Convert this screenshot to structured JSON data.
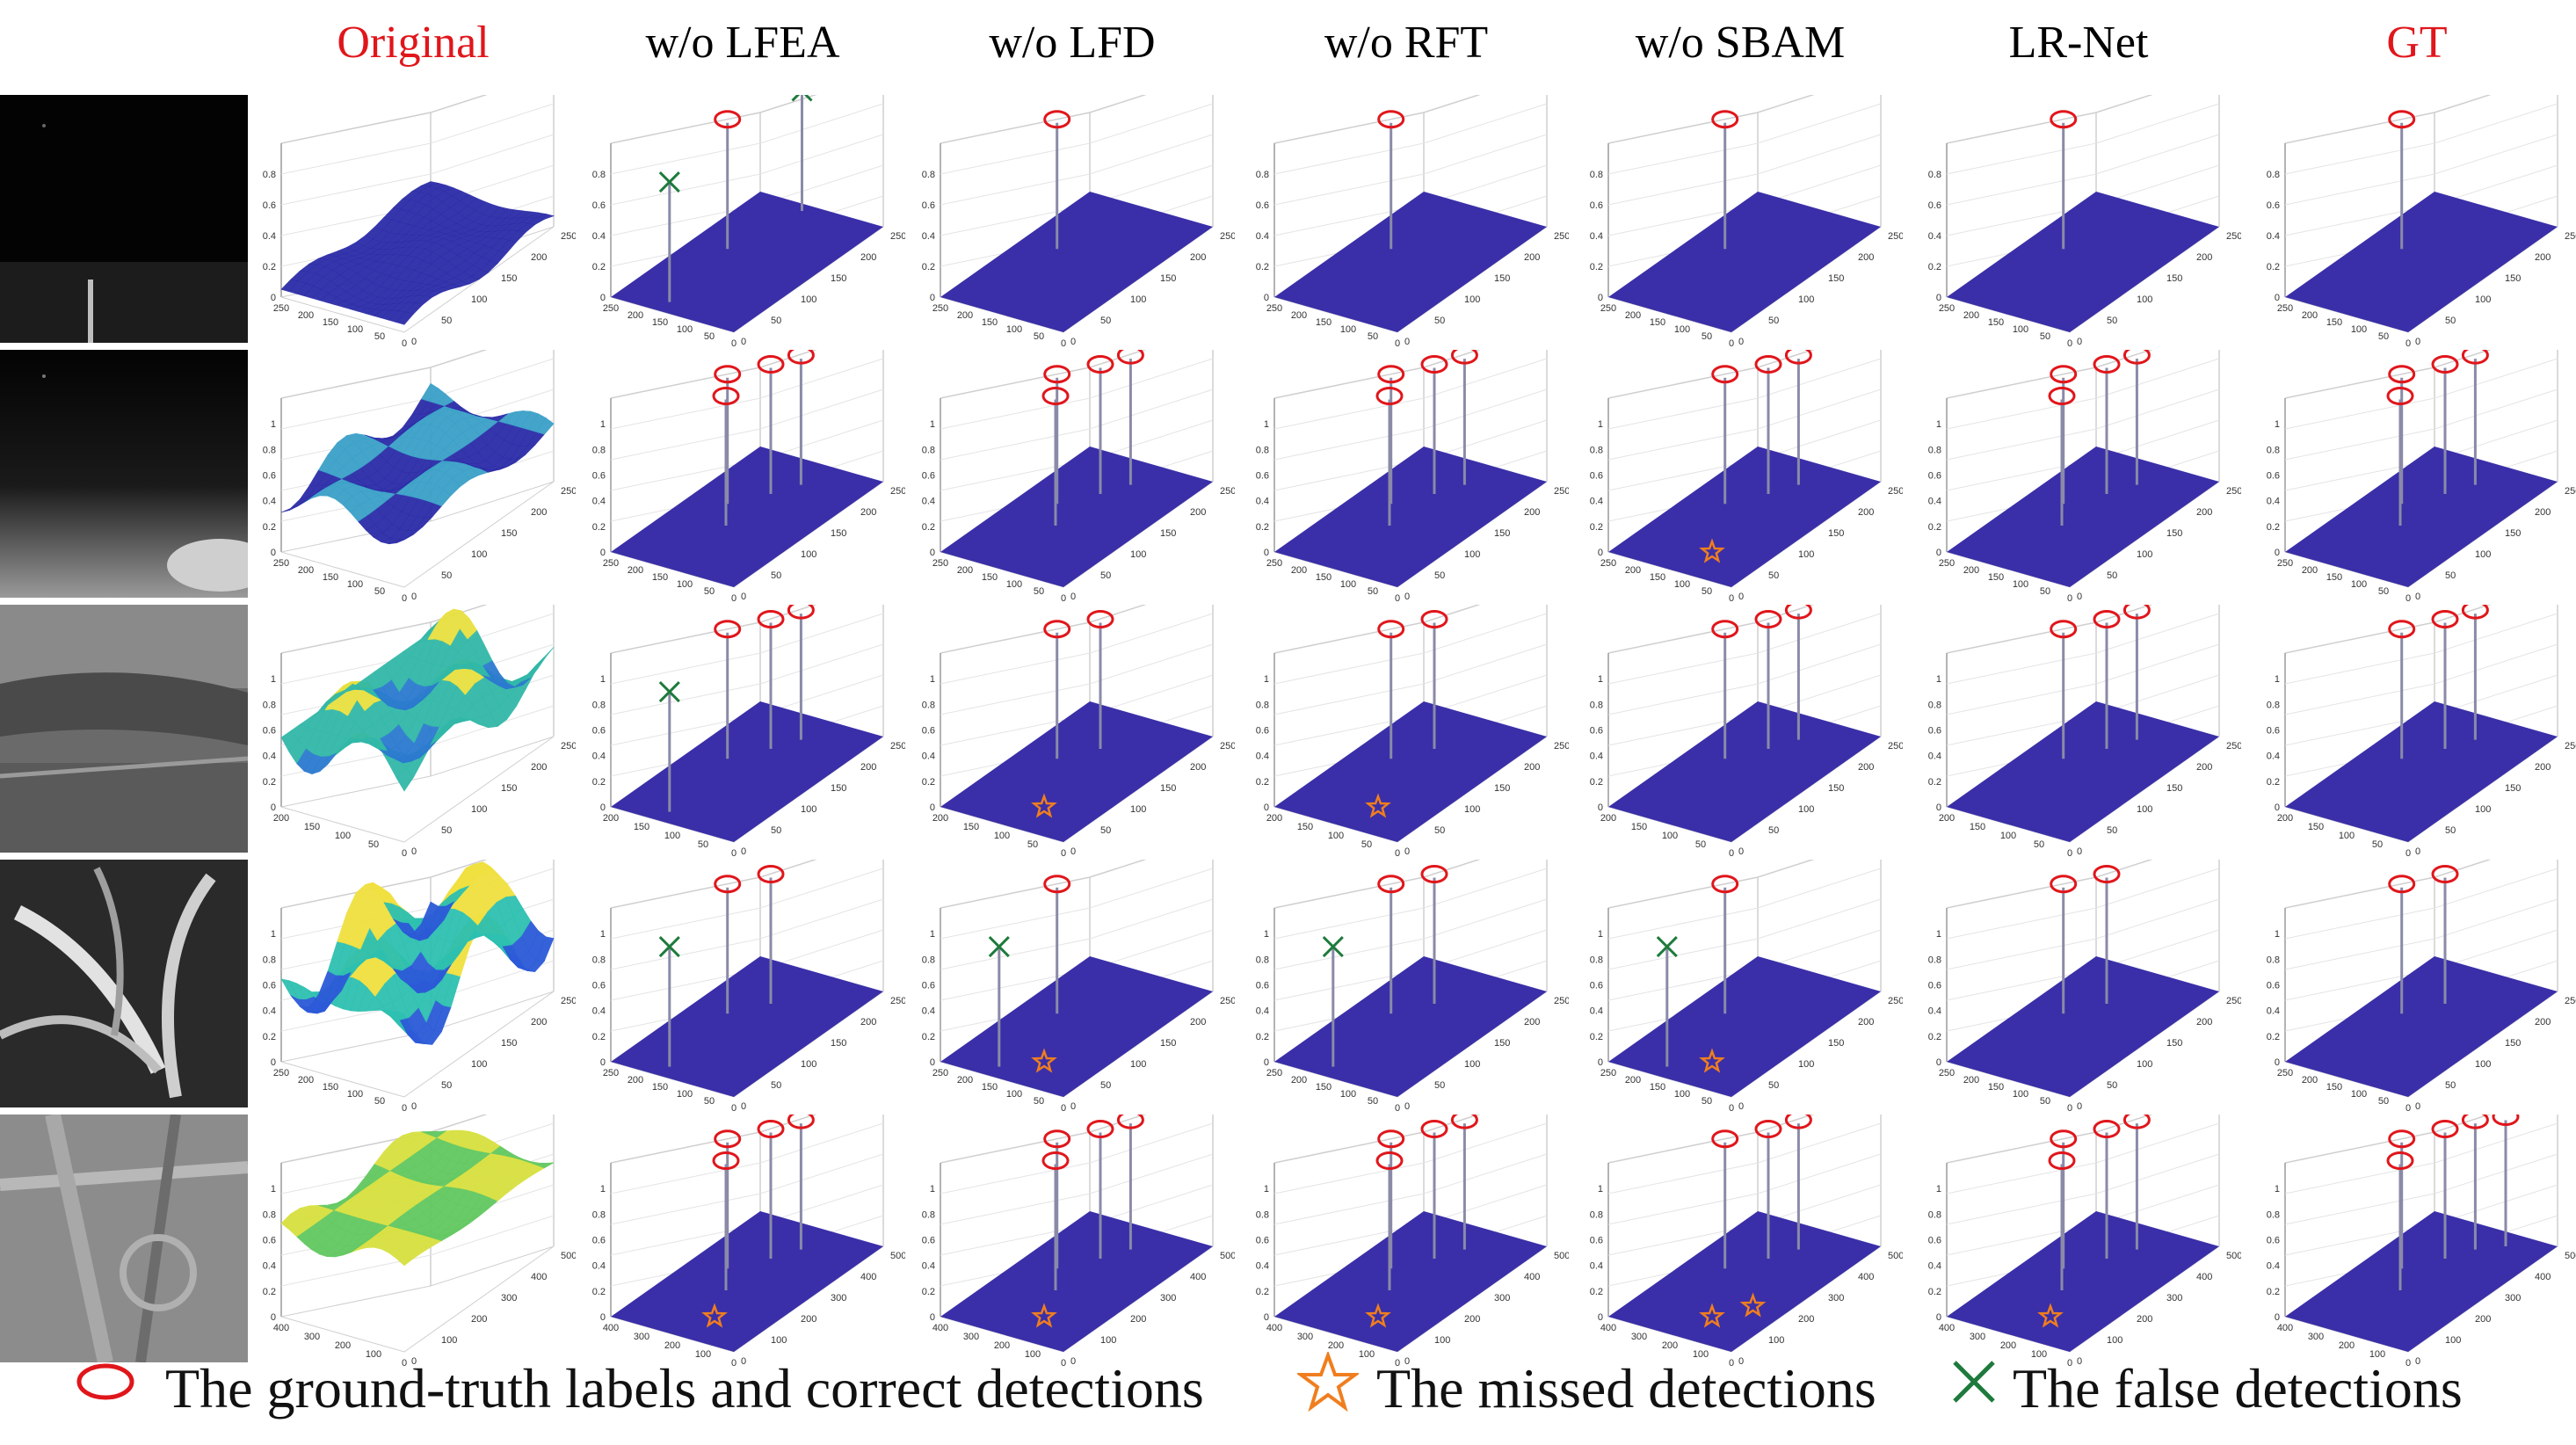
{
  "figure": {
    "columns": [
      "Original",
      "w/o LFEA",
      "w/o LFD",
      "w/o RFT",
      "w/o SBAM",
      "LR-Net",
      "GT"
    ],
    "header_colors": [
      "#e0161b",
      "#000000",
      "#000000",
      "#000000",
      "#000000",
      "#000000",
      "#e0161b"
    ],
    "legend": {
      "correct": "The ground-truth labels and correct detections",
      "missed": "The missed detections",
      "false": "The false detections"
    },
    "colors": {
      "plane": "#3a2fa8",
      "correct": "#e0161b",
      "missed": "#f07e1e",
      "false": "#1e7a3c"
    }
  },
  "rows": [
    {
      "x_ticks": [
        "0",
        "50",
        "100",
        "150",
        "200",
        "250"
      ],
      "y_ticks": [
        "0",
        "50",
        "100",
        "150",
        "200",
        "250"
      ],
      "z_ticks": [
        "0",
        "0.2",
        "0.4",
        "0.6",
        "0.8"
      ],
      "cells": [
        {
          "spikes": [
            1
          ],
          "missed": [],
          "false": [
            2
          ]
        },
        {
          "spikes": [
            1
          ],
          "missed": [],
          "false": []
        },
        {
          "spikes": [
            1
          ],
          "missed": [],
          "false": []
        },
        {
          "spikes": [
            1
          ],
          "missed": [],
          "false": []
        },
        {
          "spikes": [
            1
          ],
          "missed": [],
          "false": []
        },
        {
          "spikes": [
            1
          ],
          "missed": [],
          "false": []
        }
      ]
    },
    {
      "x_ticks": [
        "0",
        "50",
        "100",
        "150",
        "200",
        "250"
      ],
      "y_ticks": [
        "0",
        "50",
        "100",
        "150",
        "200",
        "250"
      ],
      "z_ticks": [
        "0",
        "0.2",
        "0.4",
        "0.6",
        "0.8",
        "1"
      ],
      "cells": [
        {
          "spikes": [
            4
          ],
          "missed": [],
          "false": []
        },
        {
          "spikes": [
            4
          ],
          "missed": [],
          "false": []
        },
        {
          "spikes": [
            4
          ],
          "missed": [],
          "false": []
        },
        {
          "spikes": [
            3
          ],
          "missed": [
            1
          ],
          "false": []
        },
        {
          "spikes": [
            4
          ],
          "missed": [],
          "false": []
        },
        {
          "spikes": [
            4
          ],
          "missed": [],
          "false": []
        }
      ]
    },
    {
      "x_ticks": [
        "0",
        "50",
        "100",
        "150",
        "200",
        "250"
      ],
      "y_ticks": [
        "0",
        "50",
        "100",
        "150",
        "200"
      ],
      "z_ticks": [
        "0",
        "0.2",
        "0.4",
        "0.6",
        "0.8",
        "1"
      ],
      "cells": [
        {
          "spikes": [
            3
          ],
          "missed": [],
          "false": [
            1
          ]
        },
        {
          "spikes": [
            2
          ],
          "missed": [
            1
          ],
          "false": []
        },
        {
          "spikes": [
            2
          ],
          "missed": [
            1
          ],
          "false": []
        },
        {
          "spikes": [
            3
          ],
          "missed": [],
          "false": []
        },
        {
          "spikes": [
            3
          ],
          "missed": [],
          "false": []
        },
        {
          "spikes": [
            3
          ],
          "missed": [],
          "false": []
        }
      ]
    },
    {
      "x_ticks": [
        "0",
        "50",
        "100",
        "150",
        "200",
        "250"
      ],
      "y_ticks": [
        "0",
        "50",
        "100",
        "150",
        "200",
        "250"
      ],
      "z_ticks": [
        "0",
        "0.2",
        "0.4",
        "0.6",
        "0.8",
        "1"
      ],
      "cells": [
        {
          "spikes": [
            2
          ],
          "missed": [],
          "false": [
            1
          ]
        },
        {
          "spikes": [
            1
          ],
          "missed": [
            1
          ],
          "false": [
            1
          ]
        },
        {
          "spikes": [
            2
          ],
          "missed": [],
          "false": [
            1
          ]
        },
        {
          "spikes": [
            1
          ],
          "missed": [
            1
          ],
          "false": [
            1
          ]
        },
        {
          "spikes": [
            2
          ],
          "missed": [],
          "false": []
        },
        {
          "spikes": [
            2
          ],
          "missed": [],
          "false": []
        }
      ]
    },
    {
      "x_ticks": [
        "0",
        "100",
        "200",
        "300",
        "400",
        "500"
      ],
      "y_ticks": [
        "0",
        "100",
        "200",
        "300",
        "400"
      ],
      "z_ticks": [
        "0",
        "0.2",
        "0.4",
        "0.6",
        "0.8",
        "1"
      ],
      "cells": [
        {
          "spikes": [
            4
          ],
          "missed": [
            1
          ],
          "false": []
        },
        {
          "spikes": [
            4
          ],
          "missed": [
            1
          ],
          "false": []
        },
        {
          "spikes": [
            4
          ],
          "missed": [
            1
          ],
          "false": []
        },
        {
          "spikes": [
            3
          ],
          "missed": [
            2
          ],
          "false": []
        },
        {
          "spikes": [
            4
          ],
          "missed": [
            1
          ],
          "false": []
        },
        {
          "spikes": [
            5
          ],
          "missed": [],
          "false": []
        }
      ]
    }
  ]
}
